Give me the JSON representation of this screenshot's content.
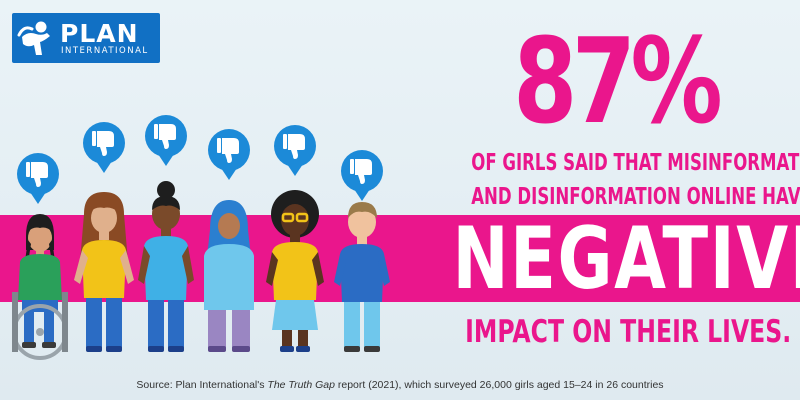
{
  "logo": {
    "name": "PLAN",
    "sub": "INTERNATIONAL",
    "color": "#1170c4"
  },
  "headline": {
    "stat": "87%",
    "line1": "OF GIRLS SAID THAT MISINFORMATION",
    "line2": "AND DISINFORMATION ONLINE HAVE HAD A",
    "emphasis": "NEGATIVE",
    "line3": "IMPACT ON THEIR LIVES."
  },
  "source": {
    "prefix": "Source: Plan International's ",
    "report": "The Truth Gap",
    "suffix": " report (2021), which surveyed 26,000 girls aged 15–24 in 26 countries"
  },
  "colors": {
    "accent": "#ea168c",
    "bubble": "#1c8ad8",
    "background": "#e3eef4"
  },
  "icons": {
    "bubble": "thumbs-down-icon",
    "logo": "child-figure-icon"
  },
  "illustration": {
    "figures": [
      "wheelchair-girl",
      "curly-hair-girl",
      "bun-hair-girl",
      "hijab-girl",
      "glasses-girl",
      "short-hair-boy"
    ]
  }
}
